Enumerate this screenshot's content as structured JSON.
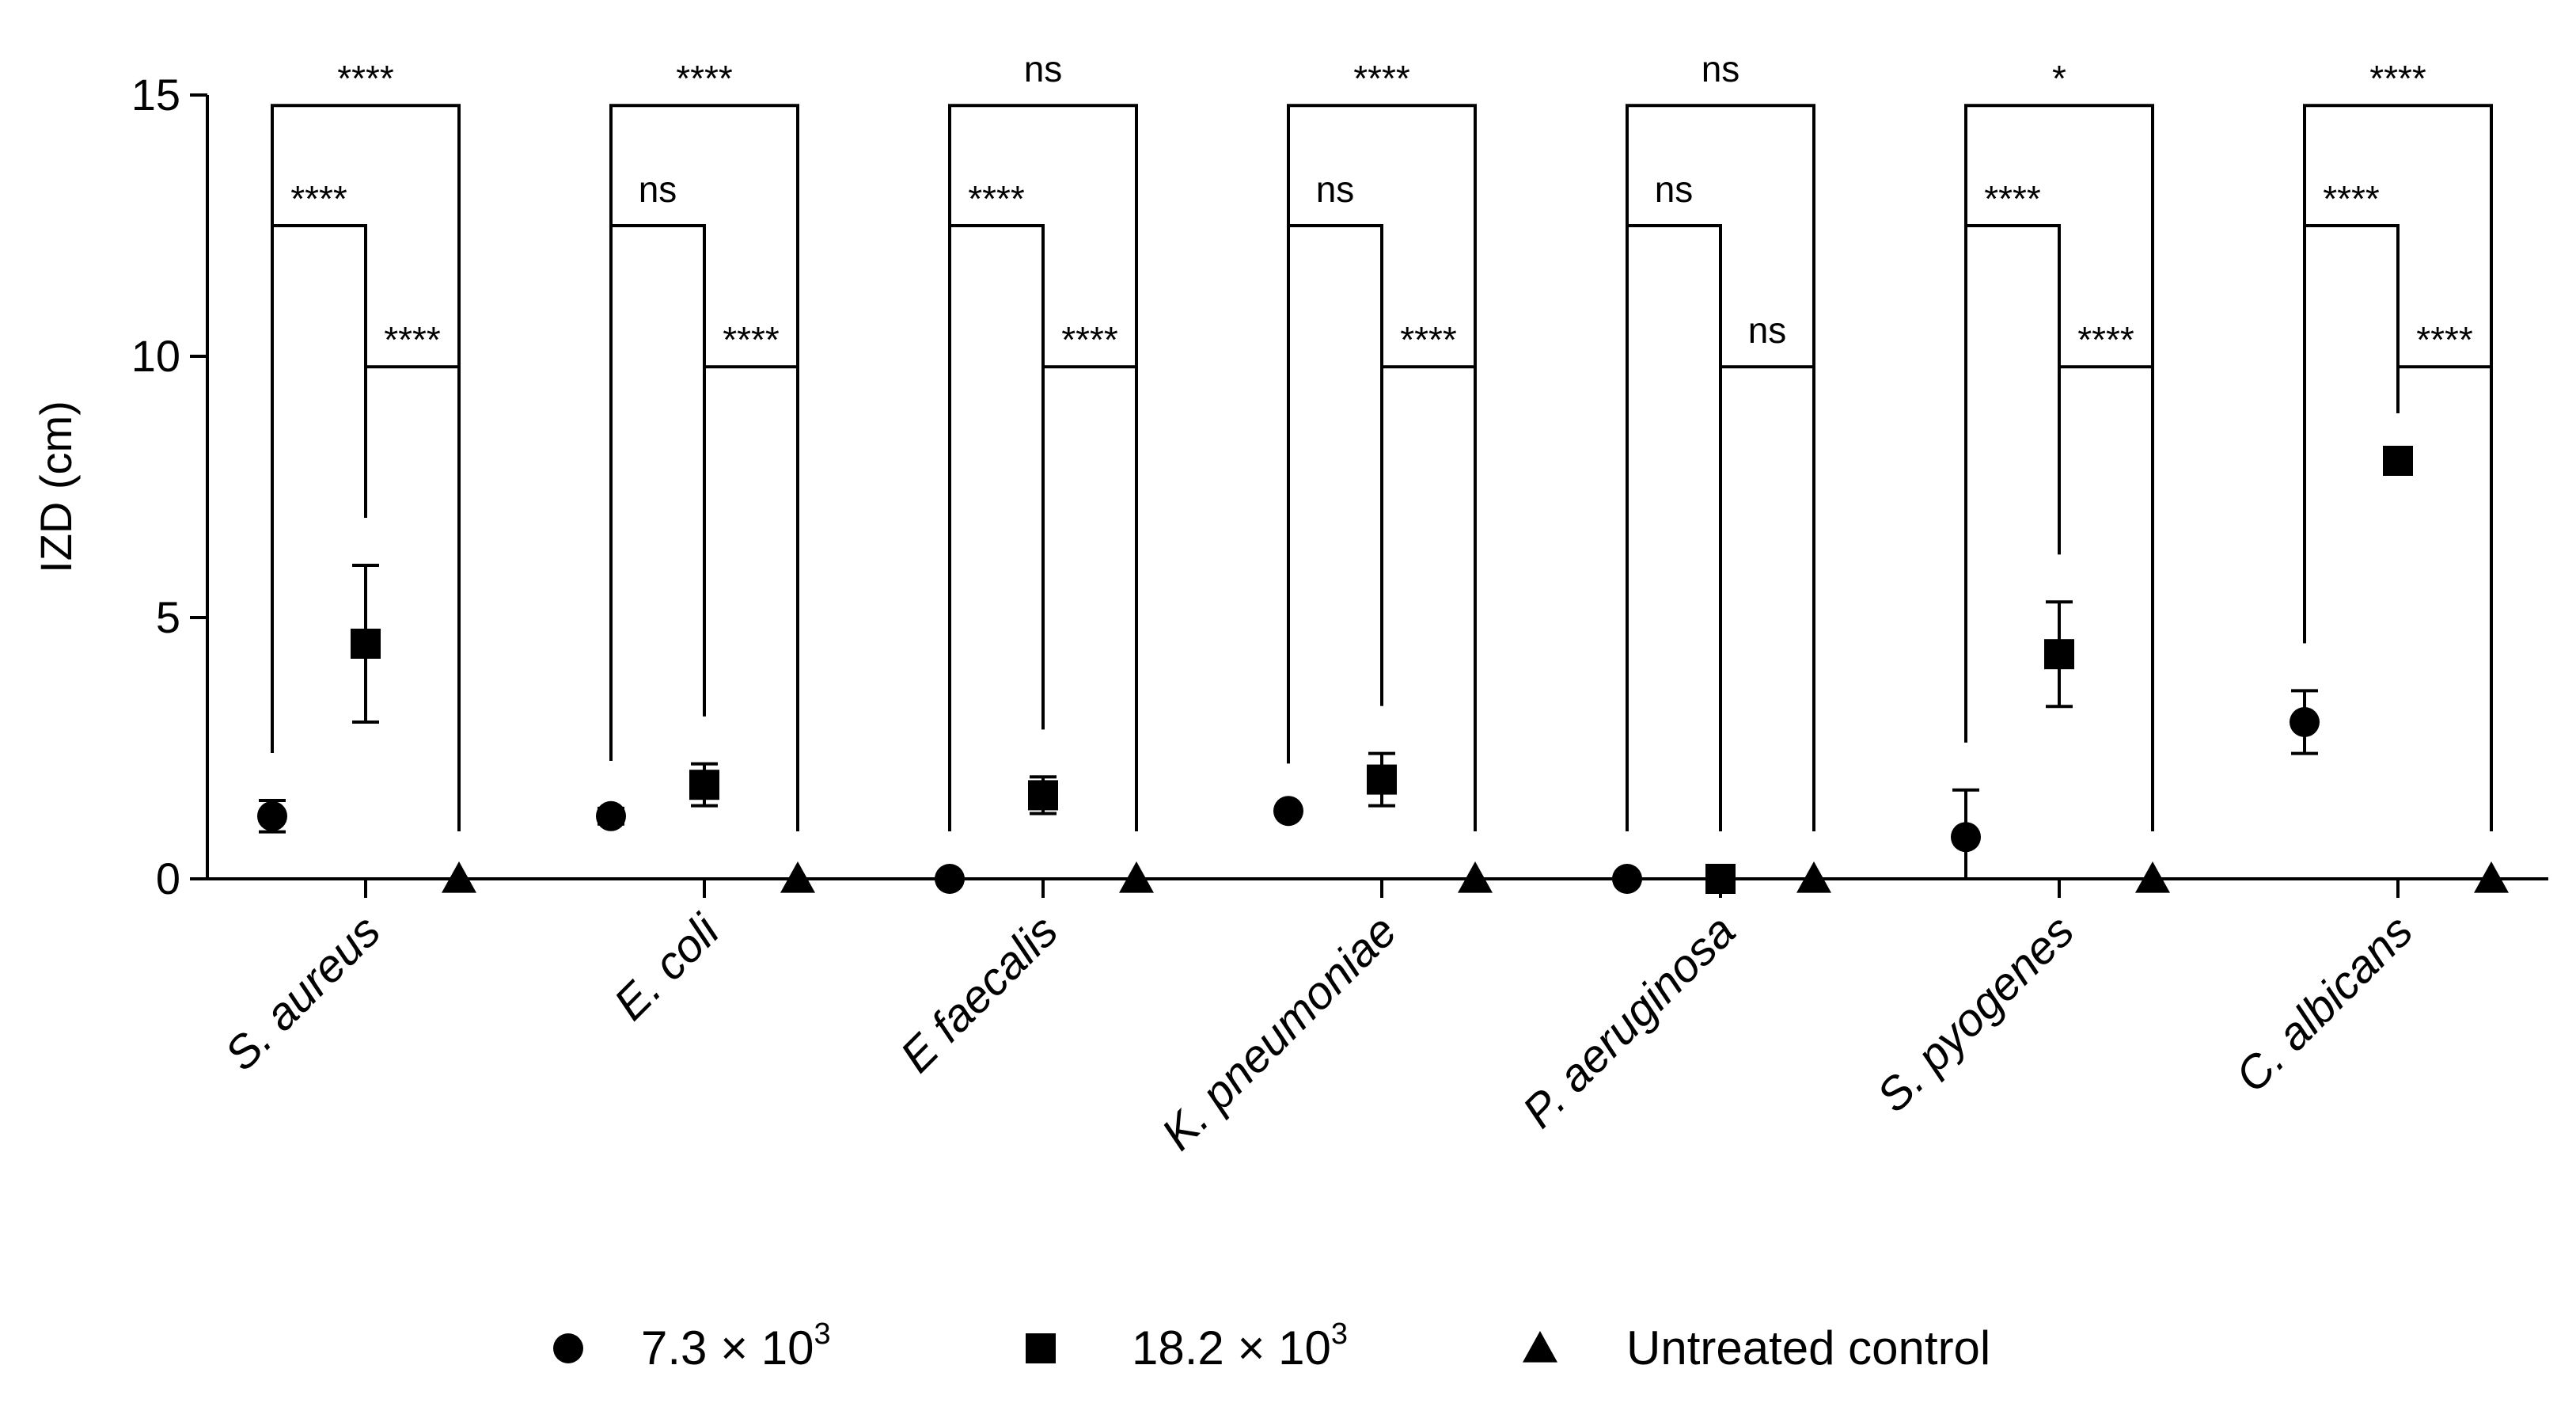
{
  "chart_data": {
    "type": "scatter",
    "title": "",
    "xlabel": "",
    "ylabel": "IZD (cm)",
    "ylim": [
      0,
      15
    ],
    "yticks": [
      0,
      5,
      10,
      15
    ],
    "yticks_labels": [
      "0",
      "5",
      "10",
      "15"
    ],
    "categories": [
      "S. aureus",
      "E. coli",
      "E faecalis",
      "K. pneumoniae",
      "P. aeruginosa",
      "S. pyogenes",
      "C. albicans"
    ],
    "series": [
      {
        "name": "7.3 × 10^3",
        "label_base": "7.3 × 10",
        "label_exp": "3",
        "marker": "circle",
        "values": [
          1.2,
          1.2,
          0.0,
          1.3,
          0.0,
          0.8,
          3.0
        ],
        "errors": [
          0.3,
          0.15,
          0.0,
          0.0,
          0.0,
          0.9,
          0.6
        ]
      },
      {
        "name": "18.2 × 10^3",
        "label_base": "18.2 × 10",
        "label_exp": "3",
        "marker": "square",
        "values": [
          4.5,
          1.8,
          1.6,
          1.9,
          0.0,
          4.3,
          8.0
        ],
        "errors": [
          1.5,
          0.4,
          0.35,
          0.5,
          0.0,
          1.0,
          0.0
        ]
      },
      {
        "name": "Untreated control",
        "label_base": "Untreated control",
        "label_exp": "",
        "marker": "triangle",
        "values": [
          0,
          0,
          0,
          0,
          0,
          0,
          0
        ],
        "errors": [
          0,
          0,
          0,
          0,
          0,
          0,
          0
        ]
      }
    ],
    "significance": [
      {
        "between": [
          0,
          2
        ],
        "labels": [
          "****",
          "****",
          "ns",
          "****",
          "ns",
          "*",
          "****"
        ]
      },
      {
        "between": [
          0,
          1
        ],
        "labels": [
          "****",
          "ns",
          "****",
          "ns",
          "ns",
          "****",
          "****"
        ]
      },
      {
        "between": [
          1,
          2
        ],
        "labels": [
          "****",
          "****",
          "****",
          "****",
          "ns",
          "****",
          "****"
        ]
      }
    ],
    "legend_position": "bottom-center"
  }
}
